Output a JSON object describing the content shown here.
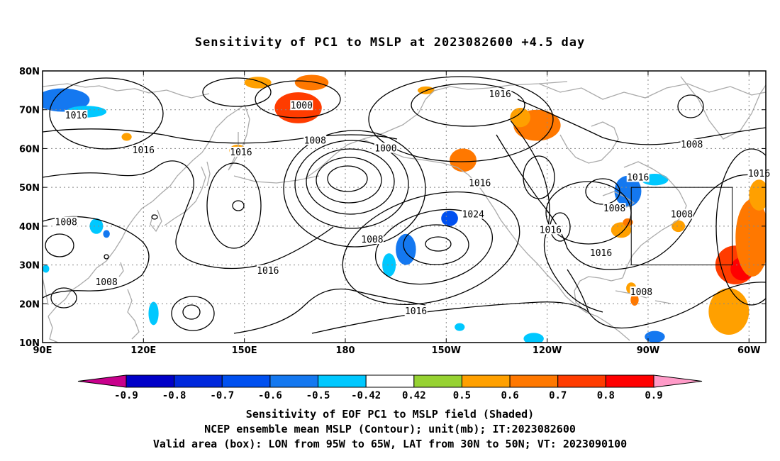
{
  "title": "Sensitivity of PC1 to MSLP at 2023082600 +4.5 day",
  "map": {
    "projection": "cylindrical",
    "lon_range": [
      90,
      305
    ],
    "lat_range": [
      10,
      80
    ],
    "lon_ticks": [
      {
        "lon": 90,
        "label": "90E"
      },
      {
        "lon": 120,
        "label": "120E"
      },
      {
        "lon": 150,
        "label": "150E"
      },
      {
        "lon": 180,
        "label": "180"
      },
      {
        "lon": 210,
        "label": "150W"
      },
      {
        "lon": 240,
        "label": "120W"
      },
      {
        "lon": 270,
        "label": "90W"
      },
      {
        "lon": 300,
        "label": "60W"
      }
    ],
    "lat_ticks": [
      {
        "lat": 10,
        "label": "10N"
      },
      {
        "lat": 20,
        "label": "20N"
      },
      {
        "lat": 30,
        "label": "30N"
      },
      {
        "lat": 40,
        "label": "40N"
      },
      {
        "lat": 50,
        "label": "50N"
      },
      {
        "lat": 60,
        "label": "60N"
      },
      {
        "lat": 70,
        "label": "70N"
      },
      {
        "lat": 80,
        "label": "80N"
      }
    ],
    "gridlines": true,
    "valid_box": {
      "lon_min": 265,
      "lon_max": 295,
      "lat_min": 30,
      "lat_max": 50
    },
    "pressure_labels": [
      {
        "text": "1016",
        "lon": 100,
        "lat": 68.5
      },
      {
        "text": "1000",
        "lon": 167,
        "lat": 71
      },
      {
        "text": "1008",
        "lon": 171,
        "lat": 62
      },
      {
        "text": "1016",
        "lon": 120,
        "lat": 59.5
      },
      {
        "text": "1016",
        "lon": 149,
        "lat": 59
      },
      {
        "text": "1000",
        "lon": 192,
        "lat": 60
      },
      {
        "text": "1016",
        "lon": 220,
        "lat": 51
      },
      {
        "text": "1016",
        "lon": 226,
        "lat": 74
      },
      {
        "text": "1008",
        "lon": 283,
        "lat": 61
      },
      {
        "text": "1016",
        "lon": 267,
        "lat": 52.5
      },
      {
        "text": "1016",
        "lon": 303,
        "lat": 53.5
      },
      {
        "text": "1008",
        "lon": 97,
        "lat": 41
      },
      {
        "text": "1024",
        "lon": 218,
        "lat": 43
      },
      {
        "text": "1008",
        "lon": 188,
        "lat": 36.5
      },
      {
        "text": "1016",
        "lon": 241,
        "lat": 39
      },
      {
        "text": "1008",
        "lon": 260,
        "lat": 44.5
      },
      {
        "text": "1008",
        "lon": 280,
        "lat": 43
      },
      {
        "text": "1016",
        "lon": 256,
        "lat": 33
      },
      {
        "text": "1016",
        "lon": 157,
        "lat": 28.5
      },
      {
        "text": "1008",
        "lon": 109,
        "lat": 25.5
      },
      {
        "text": "1008",
        "lon": 268,
        "lat": 23
      },
      {
        "text": "1016",
        "lon": 201,
        "lat": 18
      }
    ],
    "shaded_blobs": [
      {
        "lon": 96,
        "lat": 72.5,
        "rlon": 8,
        "rlat": 3,
        "level": -0.6
      },
      {
        "lon": 103,
        "lat": 69.5,
        "rlon": 6,
        "rlat": 1.5,
        "level": -0.5
      },
      {
        "lon": 166,
        "lat": 70.5,
        "rlon": 7,
        "rlat": 4,
        "level": 0.7
      },
      {
        "lon": 170,
        "lat": 77,
        "rlon": 5,
        "rlat": 2,
        "level": 0.6
      },
      {
        "lon": 154,
        "lat": 77,
        "rlon": 4,
        "rlat": 1.5,
        "level": 0.5
      },
      {
        "lon": 204,
        "lat": 75,
        "rlon": 2.5,
        "rlat": 1,
        "level": 0.5
      },
      {
        "lon": 237,
        "lat": 66,
        "rlon": 7,
        "rlat": 4,
        "level": 0.6
      },
      {
        "lon": 232,
        "lat": 68,
        "rlon": 3,
        "rlat": 2.5,
        "level": 0.5
      },
      {
        "lon": 115,
        "lat": 63,
        "rlon": 1.5,
        "rlat": 1,
        "level": 0.5
      },
      {
        "lon": 148,
        "lat": 59.5,
        "rlon": 2.5,
        "rlat": 1.5,
        "level": 0.5
      },
      {
        "lon": 215,
        "lat": 57,
        "rlon": 4,
        "rlat": 3,
        "level": 0.6
      },
      {
        "lon": 264,
        "lat": 49,
        "rlon": 4,
        "rlat": 4,
        "level": -0.6
      },
      {
        "lon": 272,
        "lat": 52,
        "rlon": 4,
        "rlat": 1.5,
        "level": -0.5
      },
      {
        "lon": 211,
        "lat": 42,
        "rlon": 2.5,
        "rlat": 2,
        "level": -0.7
      },
      {
        "lon": 198,
        "lat": 34,
        "rlon": 3,
        "rlat": 4,
        "level": -0.6
      },
      {
        "lon": 193,
        "lat": 30,
        "rlon": 2,
        "rlat": 3,
        "level": -0.5
      },
      {
        "lon": 296,
        "lat": 30,
        "rlon": 6,
        "rlat": 5,
        "level": 0.7
      },
      {
        "lon": 298,
        "lat": 29,
        "rlon": 3.5,
        "rlat": 3,
        "level": 0.8
      },
      {
        "lon": 301,
        "lat": 37,
        "rlon": 5,
        "rlat": 10,
        "level": 0.6
      },
      {
        "lon": 303,
        "lat": 48,
        "rlon": 3,
        "rlat": 4,
        "level": 0.5
      },
      {
        "lon": 294,
        "lat": 18,
        "rlon": 6,
        "rlat": 6,
        "level": 0.5
      },
      {
        "lon": 262,
        "lat": 39,
        "rlon": 3,
        "rlat": 2,
        "level": 0.5
      },
      {
        "lon": 264,
        "lat": 41,
        "rlon": 1.5,
        "rlat": 1,
        "level": 0.6
      },
      {
        "lon": 279,
        "lat": 40,
        "rlon": 2,
        "rlat": 1.5,
        "level": 0.5
      },
      {
        "lon": 265,
        "lat": 24,
        "rlon": 1.5,
        "rlat": 1.5,
        "level": 0.5
      },
      {
        "lon": 266,
        "lat": 21,
        "rlon": 1.2,
        "rlat": 1.5,
        "level": 0.6
      },
      {
        "lon": 106,
        "lat": 40,
        "rlon": 2,
        "rlat": 2,
        "level": -0.5
      },
      {
        "lon": 109,
        "lat": 38,
        "rlon": 1,
        "rlat": 1,
        "level": -0.6
      },
      {
        "lon": 123,
        "lat": 17.5,
        "rlon": 1.5,
        "rlat": 3,
        "level": -0.5
      },
      {
        "lon": 236,
        "lat": 11,
        "rlon": 3,
        "rlat": 1.5,
        "level": -0.5
      },
      {
        "lon": 272,
        "lat": 11.5,
        "rlon": 3,
        "rlat": 1.5,
        "level": -0.6
      },
      {
        "lon": 214,
        "lat": 14,
        "rlon": 1.5,
        "rlat": 1,
        "level": -0.5
      },
      {
        "lon": 91,
        "lat": 29,
        "rlon": 1,
        "rlat": 1,
        "level": -0.5
      }
    ]
  },
  "colorbar": {
    "labels": [
      "-0.9",
      "-0.8",
      "-0.7",
      "-0.6",
      "-0.5",
      "-0.42",
      "0.42",
      "0.5",
      "0.6",
      "0.7",
      "0.8",
      "0.9"
    ],
    "colors": [
      "#c8008c",
      "#0000c8",
      "#0028dc",
      "#0050f0",
      "#1478f0",
      "#00c8ff",
      "#ffffff",
      "#96d232",
      "#ffa000",
      "#ff7800",
      "#ff3c00",
      "#ff0000",
      "#ff9bc8"
    ]
  },
  "caption": {
    "line1": "Sensitivity of EOF PC1 to MSLP field (Shaded)",
    "line2": "NCEP ensemble mean MSLP (Contour); unit(mb); IT:2023082600",
    "line3": "Valid area (box): LON from 95W to 65W, LAT from 30N to 50N; VT: 2023090100"
  }
}
